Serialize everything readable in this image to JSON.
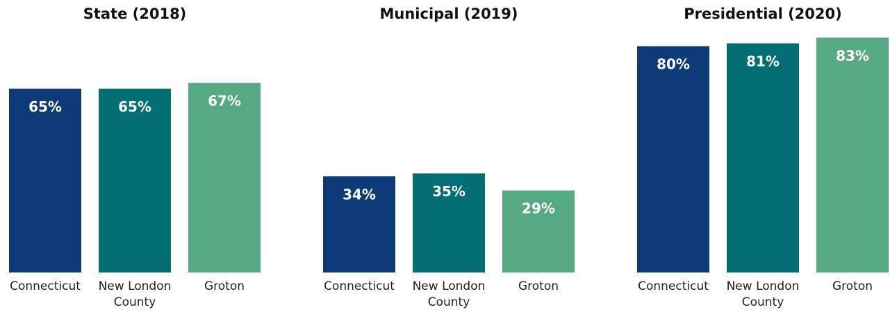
{
  "chart_data": [
    {
      "type": "bar",
      "title": "State (2018)",
      "categories": [
        [
          "Connecticut"
        ],
        [
          "New London",
          "County"
        ],
        [
          "Groton"
        ]
      ],
      "values": [
        65,
        65,
        67
      ],
      "value_labels": [
        "65%",
        "65%",
        "67%"
      ],
      "colors": [
        "#0d3b78",
        "#036f75",
        "#55aa84"
      ],
      "ylim": [
        0,
        100
      ],
      "grid": false
    },
    {
      "type": "bar",
      "title": "Municipal (2019)",
      "categories": [
        [
          "Connecticut"
        ],
        [
          "New London",
          "County"
        ],
        [
          "Groton"
        ]
      ],
      "values": [
        34,
        35,
        29
      ],
      "value_labels": [
        "34%",
        "35%",
        "29%"
      ],
      "colors": [
        "#0d3b78",
        "#036f75",
        "#55aa84"
      ],
      "ylim": [
        0,
        100
      ],
      "grid": false
    },
    {
      "type": "bar",
      "title": "Presidential (2020)",
      "categories": [
        [
          "Connecticut"
        ],
        [
          "New London",
          "County"
        ],
        [
          "Groton"
        ]
      ],
      "values": [
        80,
        81,
        83
      ],
      "value_labels": [
        "80%",
        "81%",
        "83%"
      ],
      "colors": [
        "#0d3b78",
        "#036f75",
        "#55aa84"
      ],
      "ylim": [
        0,
        100
      ],
      "grid": false
    }
  ]
}
